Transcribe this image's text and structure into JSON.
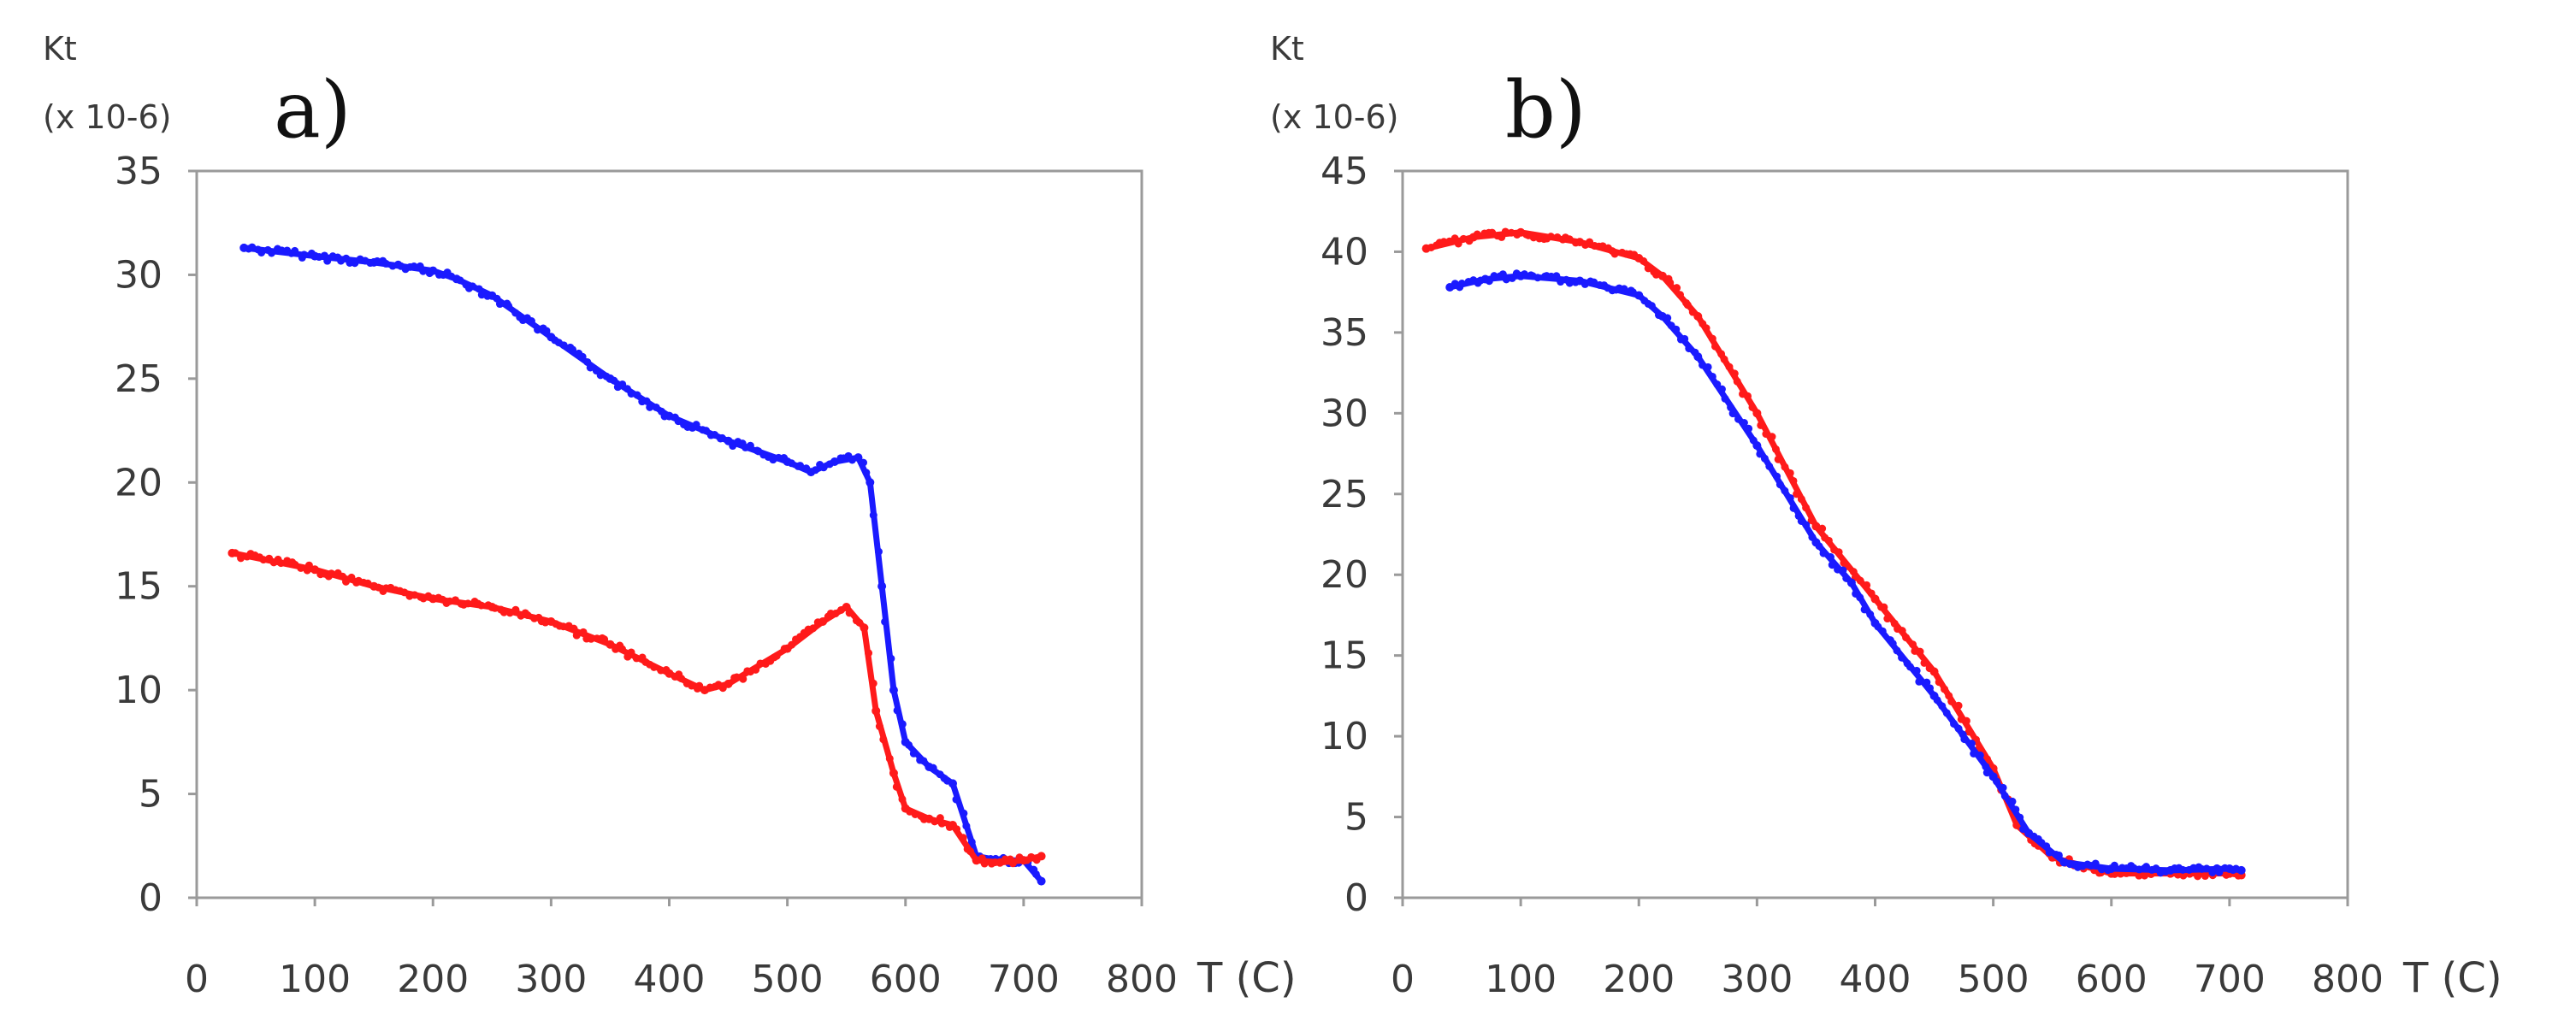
{
  "chart_data": [
    {
      "type": "scatter",
      "panel_label": "a)",
      "ylabel_line1": "Kt",
      "ylabel_line2": "(x 10-6)",
      "xlabel": "T (C)",
      "xlim": [
        0,
        800
      ],
      "ylim": [
        0,
        35
      ],
      "xticks": [
        0,
        100,
        200,
        300,
        400,
        500,
        600,
        700,
        800
      ],
      "yticks": [
        0,
        5,
        10,
        15,
        20,
        25,
        30,
        35
      ],
      "grid": false,
      "series": [
        {
          "name": "blue",
          "color": "#1a1aff",
          "x": [
            40,
            100,
            150,
            200,
            220,
            250,
            300,
            350,
            400,
            450,
            500,
            520,
            540,
            560,
            570,
            580,
            590,
            600,
            620,
            640,
            660,
            680,
            700,
            715
          ],
          "y": [
            31.3,
            30.9,
            30.6,
            30.2,
            29.8,
            29.0,
            27.0,
            25.0,
            23.2,
            22.0,
            21.0,
            20.5,
            21.0,
            21.2,
            20.0,
            15.0,
            10.0,
            7.5,
            6.3,
            5.5,
            2.0,
            1.8,
            1.8,
            0.8
          ]
        },
        {
          "name": "red",
          "color": "#ff1a1a",
          "x": [
            30,
            100,
            150,
            200,
            250,
            300,
            350,
            400,
            430,
            450,
            500,
            530,
            550,
            565,
            575,
            590,
            600,
            620,
            640,
            660,
            680,
            700,
            715
          ],
          "y": [
            16.6,
            15.8,
            15.0,
            14.4,
            14.0,
            13.3,
            12.2,
            10.8,
            10.0,
            10.3,
            12.0,
            13.3,
            14.0,
            13.0,
            9.0,
            6.0,
            4.3,
            3.8,
            3.5,
            1.8,
            1.7,
            1.8,
            2.0
          ]
        }
      ]
    },
    {
      "type": "scatter",
      "panel_label": "b)",
      "ylabel_line1": "Kt",
      "ylabel_line2": "(x 10-6)",
      "xlabel": "T (C)",
      "xlim": [
        0,
        800
      ],
      "ylim": [
        0,
        45
      ],
      "xticks": [
        0,
        100,
        200,
        300,
        400,
        500,
        600,
        700,
        800
      ],
      "yticks": [
        0,
        5,
        10,
        15,
        20,
        25,
        30,
        35,
        40,
        45
      ],
      "grid": false,
      "series": [
        {
          "name": "red",
          "color": "#ff1a1a",
          "x": [
            20,
            60,
            100,
            150,
            200,
            220,
            250,
            300,
            350,
            400,
            450,
            500,
            520,
            550,
            600,
            650,
            700,
            710
          ],
          "y": [
            40.2,
            40.9,
            41.2,
            40.6,
            39.6,
            38.5,
            36.0,
            30.0,
            23.0,
            18.5,
            14.0,
            8.0,
            4.5,
            2.5,
            1.5,
            1.5,
            1.5,
            1.4
          ]
        },
        {
          "name": "blue",
          "color": "#1a1aff",
          "x": [
            40,
            70,
            100,
            150,
            200,
            220,
            250,
            300,
            350,
            380,
            400,
            450,
            500,
            530,
            560,
            600,
            650,
            700,
            710
          ],
          "y": [
            37.8,
            38.3,
            38.5,
            38.2,
            37.3,
            36.0,
            33.5,
            28.0,
            22.0,
            19.5,
            17.0,
            12.5,
            7.5,
            4.0,
            2.2,
            1.8,
            1.7,
            1.8,
            1.7
          ]
        }
      ]
    }
  ]
}
